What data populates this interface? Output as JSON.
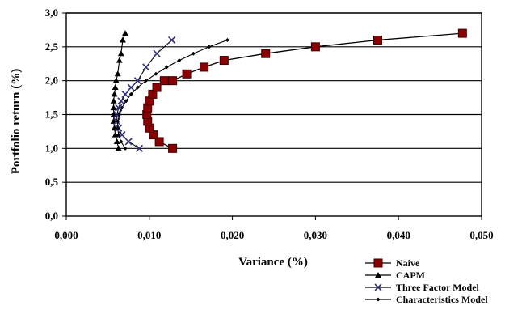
{
  "chart_data": {
    "type": "scatter",
    "xlabel": "Variance (%)",
    "ylabel": "Portfolio return (%)",
    "xlim": [
      0,
      0.05
    ],
    "ylim": [
      0,
      3.0
    ],
    "x_ticks": [
      0,
      0.01,
      0.02,
      0.03,
      0.04,
      0.05
    ],
    "x_tick_labels": [
      "0,000",
      "0,010",
      "0,020",
      "0,030",
      "0,040",
      "0,050"
    ],
    "y_ticks": [
      0,
      0.5,
      1.0,
      1.5,
      2.0,
      2.5,
      3.0
    ],
    "y_tick_labels": [
      "0,0",
      "0,5",
      "1,0",
      "1,5",
      "2,0",
      "2,5",
      "3,0"
    ],
    "grid": "horizontal",
    "legend_position": "bottom-right",
    "series": [
      {
        "name": "Naive",
        "marker": "square",
        "color": "#8b0000",
        "x": [
          0.0128,
          0.0112,
          0.0105,
          0.01,
          0.0098,
          0.0097,
          0.0098,
          0.01,
          0.0104,
          0.0109,
          0.0118,
          0.0128,
          0.0145,
          0.0166,
          0.019,
          0.024,
          0.03,
          0.0375,
          0.0477
        ],
        "y": [
          1.0,
          1.1,
          1.2,
          1.3,
          1.4,
          1.5,
          1.6,
          1.7,
          1.8,
          1.9,
          2.0,
          2.0,
          2.1,
          2.2,
          2.3,
          2.4,
          2.5,
          2.6,
          2.7
        ]
      },
      {
        "name": "CAPM",
        "marker": "triangle",
        "color": "#000000",
        "x": [
          0.0063,
          0.0061,
          0.0059,
          0.0058,
          0.0057,
          0.0057,
          0.0057,
          0.0057,
          0.0058,
          0.0059,
          0.006,
          0.0062,
          0.0064,
          0.0066,
          0.0068,
          0.0071
        ],
        "y": [
          1.0,
          1.1,
          1.2,
          1.3,
          1.4,
          1.5,
          1.6,
          1.7,
          1.8,
          1.9,
          2.0,
          2.1,
          2.3,
          2.4,
          2.6,
          2.7
        ]
      },
      {
        "name": "Three Factor Model",
        "marker": "x",
        "color": "#2f2f7a",
        "x": [
          0.0088,
          0.0075,
          0.0067,
          0.0063,
          0.0061,
          0.0061,
          0.0063,
          0.0066,
          0.0071,
          0.0078,
          0.0086,
          0.0096,
          0.0109,
          0.0127
        ],
        "y": [
          1.0,
          1.1,
          1.2,
          1.3,
          1.4,
          1.5,
          1.6,
          1.7,
          1.8,
          1.9,
          2.0,
          2.2,
          2.4,
          2.6
        ]
      },
      {
        "name": "Characteristics Model",
        "marker": "diamond",
        "color": "#000000",
        "x": [
          0.0071,
          0.0066,
          0.0063,
          0.0062,
          0.0062,
          0.0064,
          0.0067,
          0.0072,
          0.0078,
          0.0086,
          0.0096,
          0.0108,
          0.0121,
          0.0136,
          0.0153,
          0.0172,
          0.0194
        ],
        "y": [
          1.0,
          1.1,
          1.2,
          1.3,
          1.4,
          1.5,
          1.6,
          1.7,
          1.8,
          1.9,
          2.0,
          2.1,
          2.2,
          2.3,
          2.4,
          2.5,
          2.6
        ]
      }
    ]
  }
}
